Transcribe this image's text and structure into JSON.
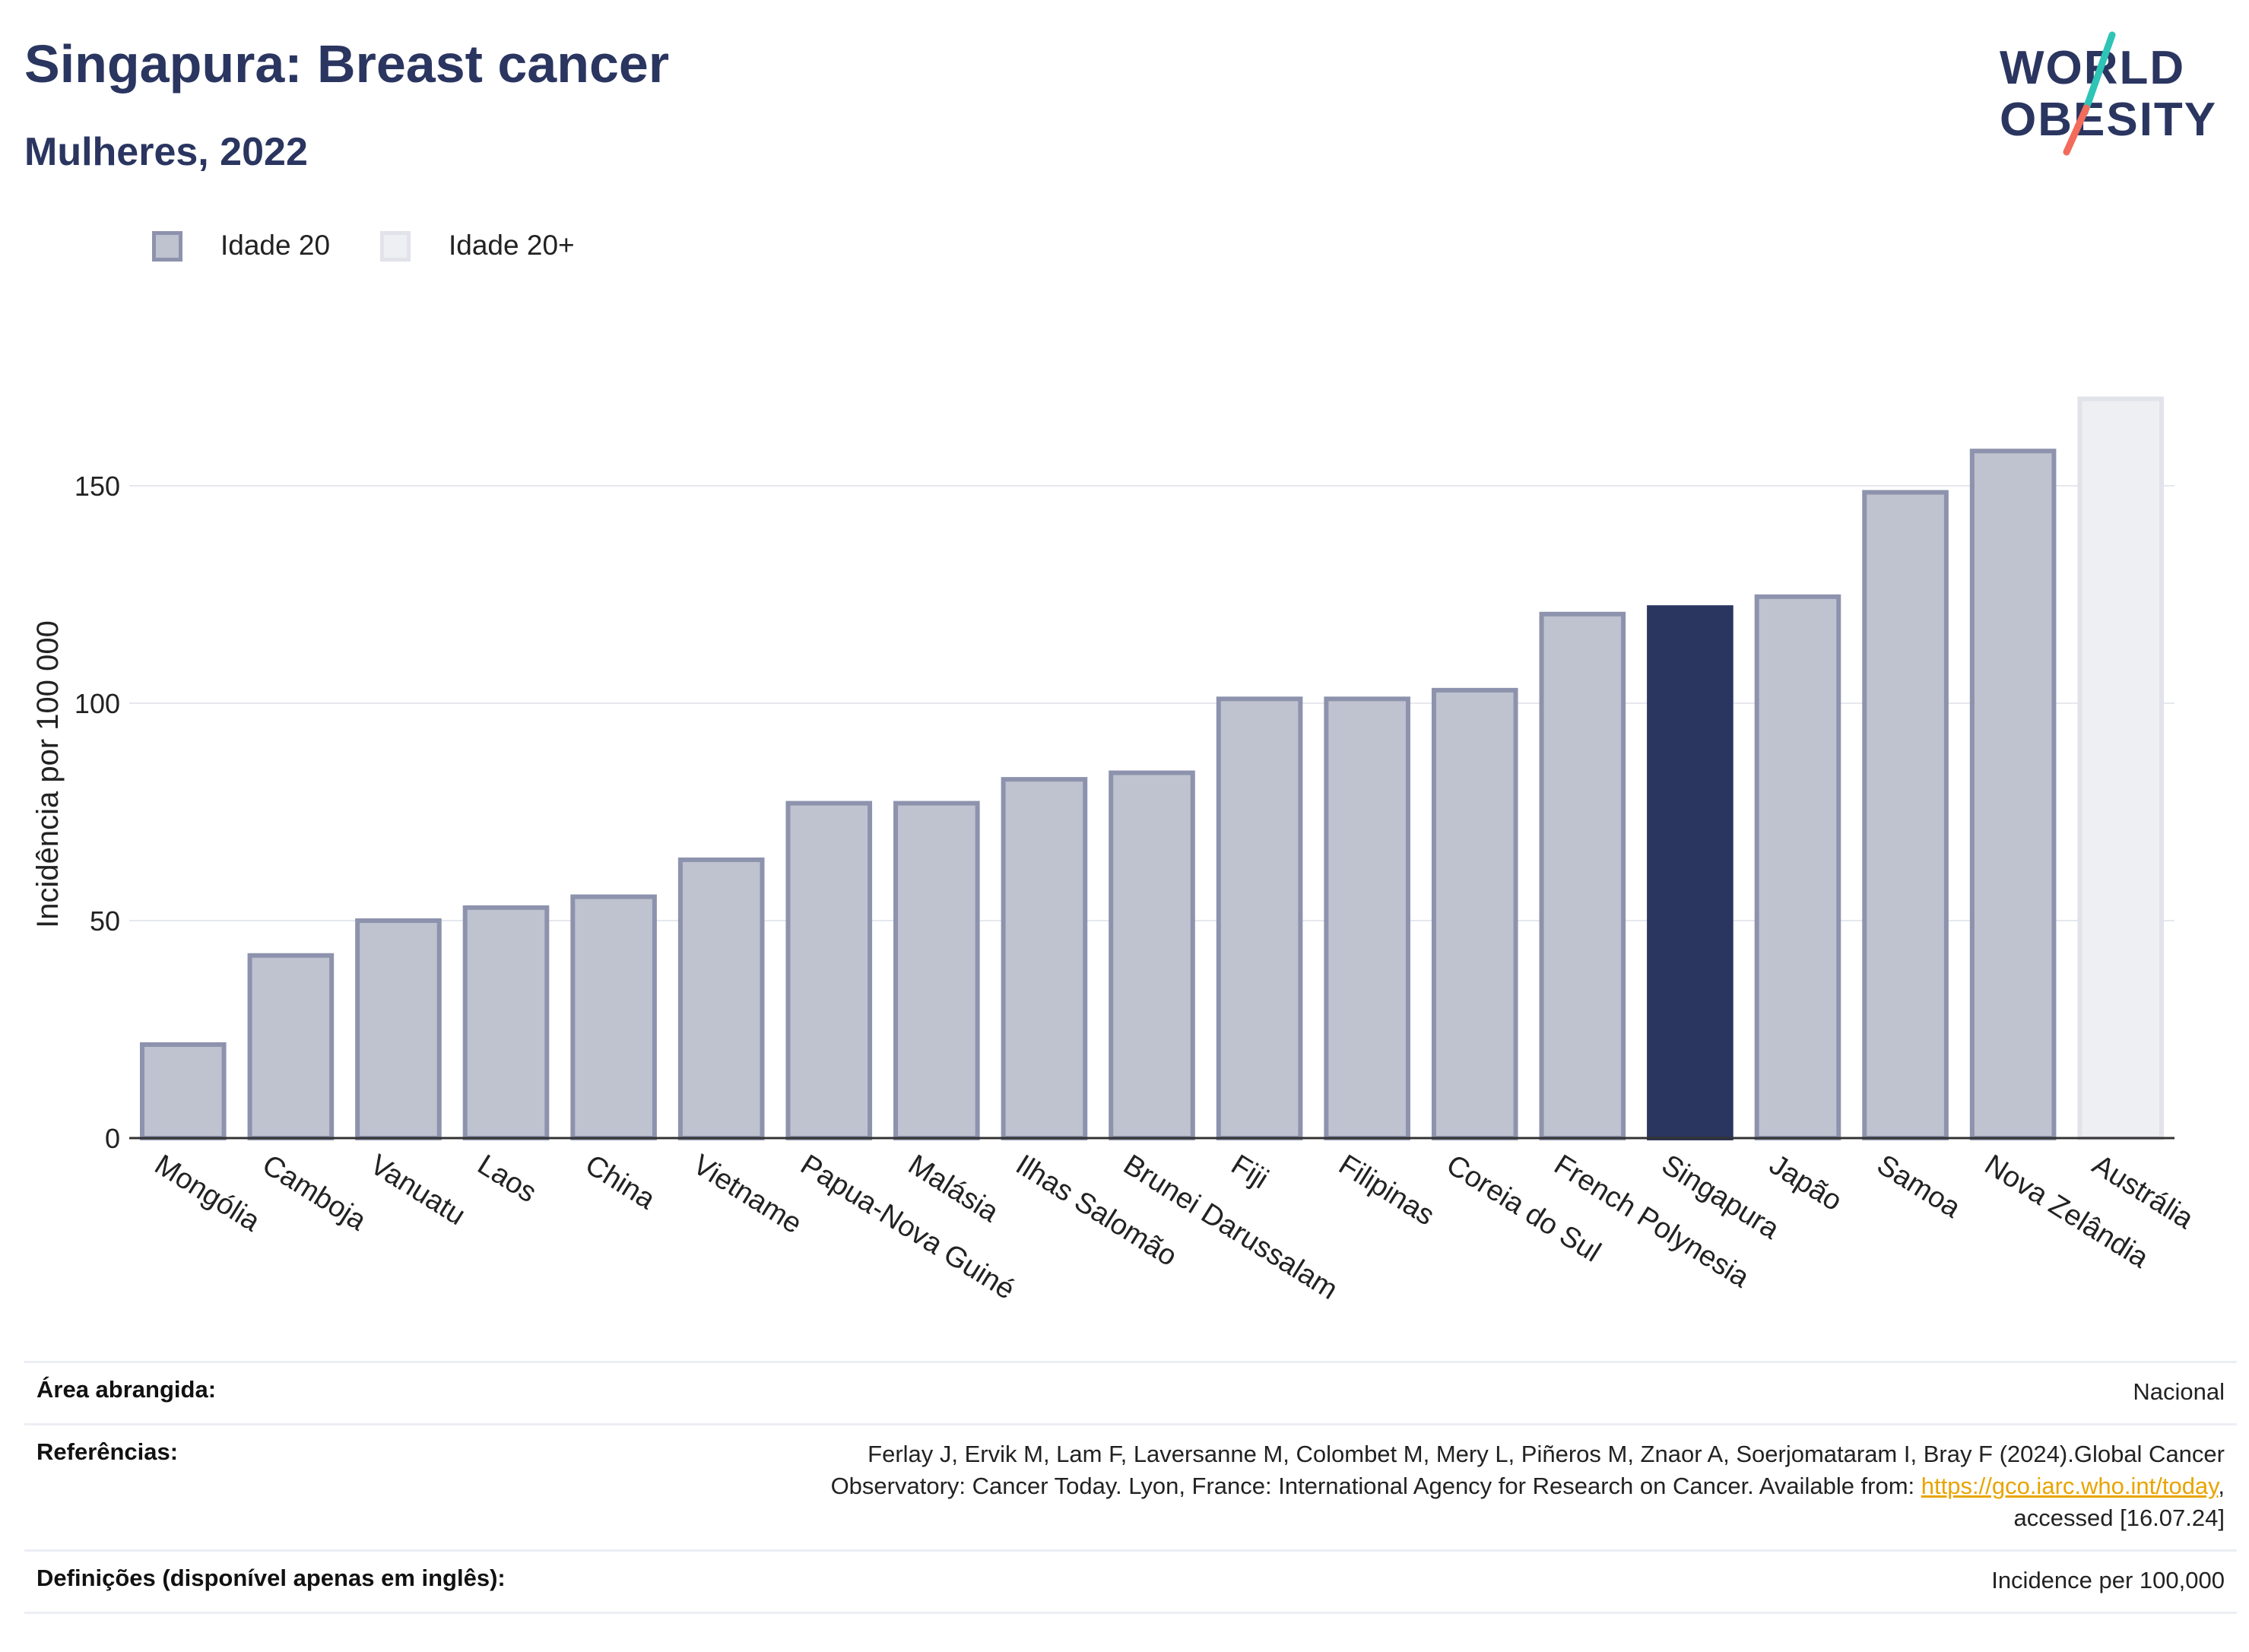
{
  "header": {
    "title": "Singapura: Breast cancer",
    "subtitle": "Mulheres, 2022"
  },
  "logo": {
    "line1": "WORLD",
    "line2": "OBESITY",
    "colors": {
      "text": "#2a3560",
      "slash_top": "#2ec4b6",
      "slash_bottom": "#f26b5b"
    }
  },
  "legend": {
    "items": [
      {
        "label": "Idade 20",
        "fill": "#bfc2cf",
        "stroke": "#8d93ad"
      },
      {
        "label": "Idade 20+",
        "fill": "#eeeff3",
        "stroke": "#e2e3ea"
      }
    ]
  },
  "chart_data": {
    "type": "bar",
    "title": "Singapura: Breast cancer",
    "subtitle": "Mulheres, 2022",
    "ylabel": "Incidência por 100 000",
    "xlabel": "",
    "ylim": [
      0,
      180
    ],
    "yticks": [
      0,
      50,
      100,
      150
    ],
    "grid": true,
    "categories": [
      "Mongólia",
      "Camboja",
      "Vanuatu",
      "Laos",
      "China",
      "Vietname",
      "Papua-Nova Guiné",
      "Malásia",
      "Ilhas Salomão",
      "Brunei Darussalam",
      "Fiji",
      "Filipinas",
      "Coreia do Sul",
      "French Polynesia",
      "Singapura",
      "Japão",
      "Samoa",
      "Nova Zelândia",
      "Austrália"
    ],
    "values": [
      21.5,
      42,
      50,
      53,
      55.5,
      64,
      77,
      77,
      82.5,
      84,
      101,
      101,
      103,
      120.5,
      122,
      124.5,
      148.5,
      158,
      170
    ],
    "series_group": [
      "Idade 20",
      "Idade 20",
      "Idade 20",
      "Idade 20",
      "Idade 20",
      "Idade 20",
      "Idade 20",
      "Idade 20",
      "Idade 20",
      "Idade 20",
      "Idade 20",
      "Idade 20",
      "Idade 20",
      "Idade 20",
      "Idade 20",
      "Idade 20",
      "Idade 20",
      "Idade 20",
      "Idade 20+"
    ],
    "highlight": "Singapura",
    "colors": {
      "bar_fill": "#bfc2cf",
      "bar_stroke": "#8d93ad",
      "highlight_fill": "#2a3560",
      "light_fill": "#eeeff3",
      "light_stroke": "#e2e3ea",
      "grid": "#e6e8ee",
      "axis": "#333333"
    }
  },
  "footer": {
    "rows": [
      {
        "label": "Área abrangida:",
        "value": "Nacional"
      },
      {
        "label": "Referências:",
        "value_line1": "Ferlay J, Ervik M, Lam F, Laversanne M, Colombet M, Mery L, Piñeros M, Znaor A, Soerjomataram I, Bray F (2024).Global Cancer",
        "value_line2_pre": "Observatory: Cancer Today. Lyon, France: International Agency for Research on Cancer. Available from: ",
        "value_link": "https://gco.iarc.who.int/today",
        "value_line2_post": ",",
        "value_line3": "accessed [16.07.24]"
      },
      {
        "label": "Definições (disponível apenas em inglês):",
        "value": "Incidence per 100,000"
      }
    ]
  }
}
